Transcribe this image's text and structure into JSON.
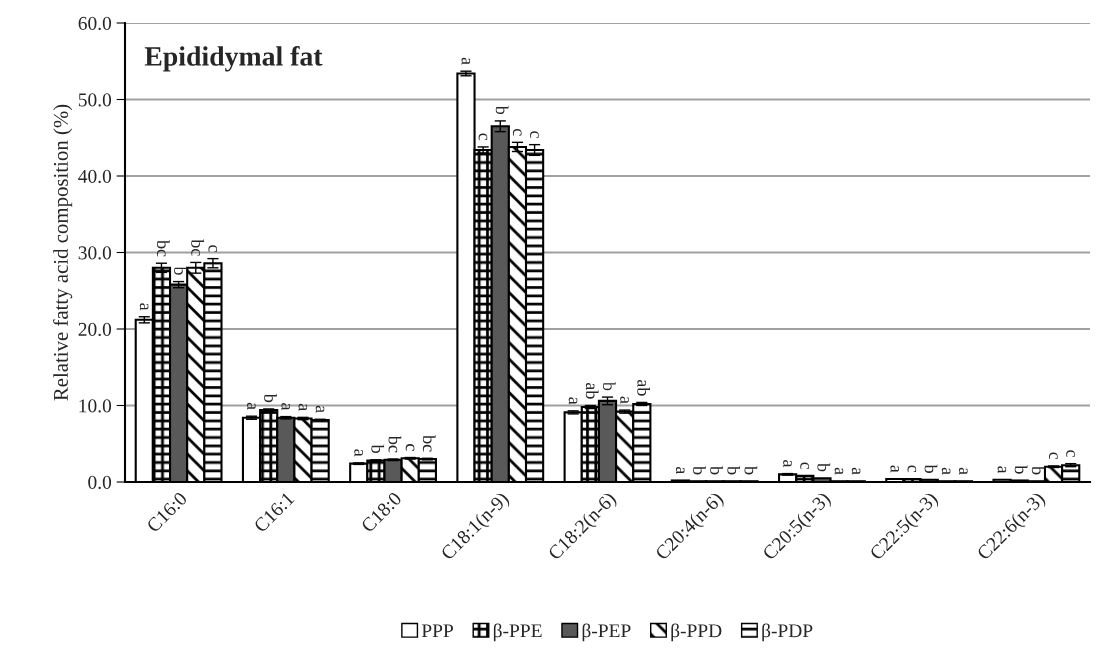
{
  "chart_data": {
    "type": "bar",
    "title": "Epididymal fat",
    "ylabel": "Relative fatty acid composition (%)",
    "categories": [
      "C16:0",
      "C16:1",
      "C18:0",
      "C18:1(n-9)",
      "C18:2(n-6)",
      "C20:4(n-6)",
      "C20:5(n-3)",
      "C22:5(n-3)",
      "C22:6(n-3)"
    ],
    "series": [
      {
        "name": "PPP",
        "color": "#ffffff",
        "values": [
          21.2,
          8.4,
          2.4,
          53.4,
          9.1,
          0.2,
          1.0,
          0.4,
          0.3
        ],
        "errors": [
          0.4,
          0.2,
          0.1,
          0.3,
          0.2,
          null,
          0.1,
          null,
          null
        ],
        "value_labels": [
          "a",
          "a",
          "a",
          "a",
          "a",
          "a",
          "a",
          "a",
          "a"
        ]
      },
      {
        "name": "β-PPE",
        "color": "#000000",
        "values": [
          28.0,
          9.4,
          2.8,
          43.4,
          9.8,
          0.1,
          0.8,
          0.4,
          0.2
        ],
        "errors": [
          0.6,
          0.15,
          0.1,
          0.4,
          0.2,
          null,
          null,
          null,
          null
        ],
        "value_labels": [
          "bc",
          "b",
          "b",
          "c",
          "ab",
          "b",
          "c",
          "c",
          "b"
        ]
      },
      {
        "name": "β-PEP",
        "color": "#595959",
        "values": [
          25.8,
          8.4,
          2.9,
          46.5,
          10.6,
          0.1,
          0.5,
          0.3,
          0.1
        ],
        "errors": [
          0.4,
          0.15,
          0.1,
          0.7,
          0.5,
          null,
          null,
          null,
          null
        ],
        "value_labels": [
          "b",
          "a",
          "bc",
          "b",
          "b",
          "b",
          "b",
          "b",
          "b"
        ]
      },
      {
        "name": "β-PPD",
        "color": "#000000",
        "values": [
          28.0,
          8.3,
          3.1,
          43.8,
          9.2,
          0.1,
          0.1,
          0.1,
          2.0
        ],
        "errors": [
          0.7,
          0.15,
          0.1,
          0.6,
          0.2,
          null,
          null,
          null,
          0.1
        ],
        "value_labels": [
          "bc",
          "a",
          "c",
          "c",
          "a",
          "b",
          "a",
          "a",
          "c"
        ]
      },
      {
        "name": "β-PDP",
        "color": "#000000",
        "values": [
          28.6,
          8.1,
          3.0,
          43.4,
          10.2,
          0.1,
          0.1,
          0.1,
          2.2
        ],
        "errors": [
          0.6,
          0.1,
          0.1,
          0.7,
          0.2,
          null,
          null,
          null,
          0.2
        ],
        "value_labels": [
          "c",
          "a",
          "bc",
          "c",
          "ab",
          "b",
          "a",
          "a",
          "c"
        ]
      }
    ],
    "ylim": [
      0,
      60
    ],
    "yticks": [
      {
        "value": 0,
        "label": "0.0"
      },
      {
        "value": 10,
        "label": "10.0"
      },
      {
        "value": 20,
        "label": "20.0"
      },
      {
        "value": 30,
        "label": "30.0"
      },
      {
        "value": 40,
        "label": "40.0"
      },
      {
        "value": 50,
        "label": "50.0"
      },
      {
        "value": 60,
        "label": "60.0"
      }
    ],
    "grid": "y",
    "legend": "bottom"
  }
}
